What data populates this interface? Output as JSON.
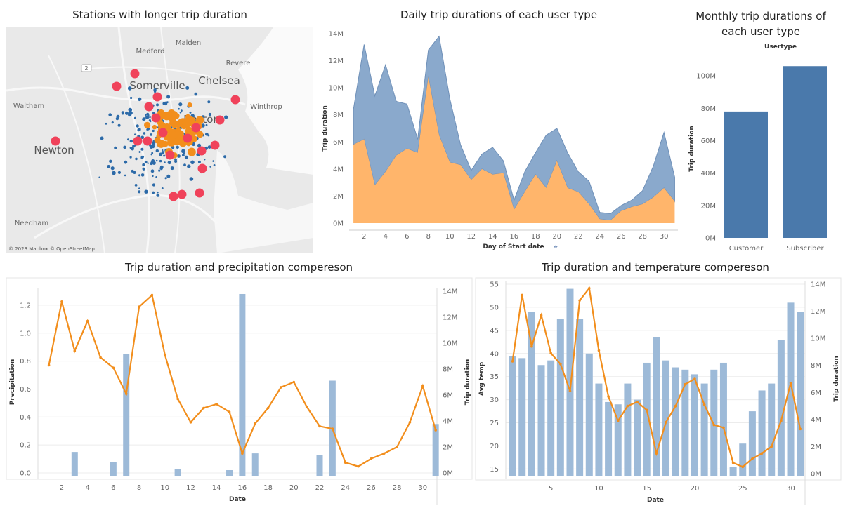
{
  "titles": {
    "map": "Stations with longer trip duration",
    "daily": "Daily trip durations of each user type",
    "monthly": "Monthly trip durations of each user type",
    "precip": "Trip duration and precipitation compereson",
    "temp": "Trip duration and temperature compereson"
  },
  "map": {
    "attribution": "© 2023 Mapbox © OpenStreetMap",
    "places": [
      {
        "name": "Malden"
      },
      {
        "name": "Medford"
      },
      {
        "name": "Revere"
      },
      {
        "name": "Chelsea"
      },
      {
        "name": "Somerville"
      },
      {
        "name": "Waltham"
      },
      {
        "name": "Winthrop"
      },
      {
        "name": "Newton"
      },
      {
        "name": "Boston"
      },
      {
        "name": "Needham"
      }
    ],
    "route_label": "2",
    "colors": {
      "subscriber": "#2c6aa8",
      "customer": "#f28e1c",
      "long": "#f0425a",
      "land": "#e9e9e9"
    }
  },
  "chart_data": [
    {
      "id": "daily",
      "type": "area",
      "title": "Daily trip durations of each user type",
      "xlabel": "Day of Start date",
      "ylabel": "Trip duration",
      "x": [
        1,
        2,
        3,
        4,
        5,
        6,
        7,
        8,
        9,
        10,
        11,
        12,
        13,
        14,
        15,
        16,
        17,
        18,
        19,
        20,
        21,
        22,
        23,
        24,
        25,
        26,
        27,
        28,
        29,
        30,
        31
      ],
      "xticks": [
        "2",
        "4",
        "6",
        "8",
        "10",
        "12",
        "14",
        "16",
        "18",
        "20",
        "22",
        "24",
        "26",
        "28",
        "30"
      ],
      "ylim": [
        0,
        14000000
      ],
      "yticks": [
        "0M",
        "2M",
        "4M",
        "6M",
        "8M",
        "10M",
        "12M",
        "14M"
      ],
      "stacked": true,
      "series": [
        {
          "color": "#ffb56b",
          "values": [
            5.8,
            6.2,
            2.8,
            3.8,
            5.0,
            5.5,
            5.2,
            10.8,
            6.5,
            4.5,
            4.3,
            3.2,
            4.0,
            3.6,
            3.7,
            1.0,
            2.3,
            3.6,
            2.6,
            4.6,
            2.6,
            2.3,
            1.4,
            0.3,
            0.2,
            0.9,
            1.2,
            1.4,
            1.9,
            2.6,
            1.6
          ]
        },
        {
          "color": "#8aa9cc",
          "values": [
            2.6,
            7.0,
            6.6,
            7.9,
            4.0,
            3.3,
            1.0,
            2.0,
            7.3,
            4.7,
            1.5,
            0.7,
            1.1,
            2.0,
            0.9,
            0.7,
            1.5,
            1.6,
            3.9,
            2.4,
            2.6,
            1.5,
            1.7,
            0.5,
            0.5,
            0.4,
            0.5,
            1.0,
            2.3,
            4.1,
            1.8
          ]
        }
      ]
    },
    {
      "id": "monthly",
      "type": "bar",
      "title": "Monthly trip durations of each user type",
      "legend_title": "Usertype",
      "ylabel": "Trip duration",
      "categories": [
        "Customer",
        "Subscriber"
      ],
      "values": [
        78000000,
        106000000
      ],
      "ylim": [
        0,
        110000000
      ],
      "yticks": [
        "0M",
        "20M",
        "40M",
        "60M",
        "80M",
        "100M"
      ],
      "color": "#4a79ab"
    },
    {
      "id": "precip",
      "type": "bar",
      "title": "Trip duration and precipitation compereson",
      "xlabel": "Date",
      "ylabel": "Precipitation",
      "ylabel_right": "Trip duration",
      "x": [
        1,
        2,
        3,
        4,
        5,
        6,
        7,
        8,
        9,
        10,
        11,
        12,
        13,
        14,
        15,
        16,
        17,
        18,
        19,
        20,
        21,
        22,
        23,
        24,
        25,
        26,
        27,
        28,
        29,
        30,
        31
      ],
      "xticks": [
        "2",
        "4",
        "6",
        "8",
        "10",
        "12",
        "14",
        "16",
        "18",
        "20",
        "22",
        "24",
        "26",
        "28",
        "30"
      ],
      "ylim": [
        0,
        1.3
      ],
      "yticks": [
        "0.0",
        "0.2",
        "0.4",
        "0.6",
        "0.8",
        "1.0",
        "1.2"
      ],
      "ylim_right": [
        0,
        14000000
      ],
      "yticks_right": [
        "0M",
        "2M",
        "4M",
        "6M",
        "8M",
        "10M",
        "12M",
        "14M"
      ],
      "series": [
        {
          "kind": "bar",
          "color": "#9dbad8",
          "values": [
            0,
            0,
            0.15,
            0,
            0,
            0.08,
            0.85,
            0,
            0,
            0,
            0.03,
            0,
            0,
            0,
            0.02,
            1.28,
            0.14,
            0,
            0,
            0,
            0,
            0.13,
            0.66,
            0,
            0,
            0,
            0,
            0,
            0,
            0,
            0.35
          ]
        },
        {
          "kind": "line",
          "color": "#f28e1c",
          "values": [
            8.3,
            13.2,
            9.4,
            11.7,
            8.9,
            8.1,
            6.1,
            12.8,
            13.7,
            9.1,
            5.7,
            3.9,
            5.0,
            5.3,
            4.7,
            1.5,
            3.8,
            5.0,
            6.6,
            7.0,
            5.1,
            3.6,
            3.4,
            0.8,
            0.5,
            1.1,
            1.5,
            2.0,
            3.9,
            6.7,
            3.3
          ]
        }
      ]
    },
    {
      "id": "temp",
      "type": "bar",
      "title": "Trip duration and temperature compereson",
      "xlabel": "Date",
      "ylabel": "Avg temp",
      "ylabel_right": "Trip duration",
      "x": [
        1,
        2,
        3,
        4,
        5,
        6,
        7,
        8,
        9,
        10,
        11,
        12,
        13,
        14,
        15,
        16,
        17,
        18,
        19,
        20,
        21,
        22,
        23,
        24,
        25,
        26,
        27,
        28,
        29,
        30,
        31
      ],
      "xticks": [
        "5",
        "10",
        "15",
        "20",
        "25",
        "30"
      ],
      "ylim": [
        14,
        55
      ],
      "yticks": [
        "15",
        "20",
        "25",
        "30",
        "35",
        "40",
        "45",
        "50",
        "55"
      ],
      "ylim_right": [
        0,
        14000000
      ],
      "yticks_right": [
        "0M",
        "2M",
        "4M",
        "6M",
        "8M",
        "10M",
        "12M",
        "14M"
      ],
      "series": [
        {
          "kind": "bar",
          "color": "#9dbad8",
          "values": [
            39.5,
            39,
            49,
            37.5,
            38.5,
            47.5,
            54,
            47.5,
            40,
            33.5,
            29.5,
            29,
            33.5,
            30,
            38,
            43.5,
            38.5,
            37,
            36.5,
            35.5,
            33.5,
            36.5,
            38,
            15.5,
            20.5,
            27.5,
            32,
            33.5,
            43,
            51,
            49
          ]
        },
        {
          "kind": "line",
          "color": "#f28e1c",
          "values": [
            8.3,
            13.2,
            9.4,
            11.7,
            8.9,
            8.1,
            6.1,
            12.8,
            13.7,
            9.1,
            5.7,
            3.9,
            5.0,
            5.3,
            4.7,
            1.5,
            3.8,
            5.0,
            6.6,
            7.0,
            5.1,
            3.6,
            3.4,
            0.8,
            0.5,
            1.1,
            1.5,
            2.0,
            3.9,
            6.7,
            3.3
          ]
        }
      ]
    }
  ]
}
